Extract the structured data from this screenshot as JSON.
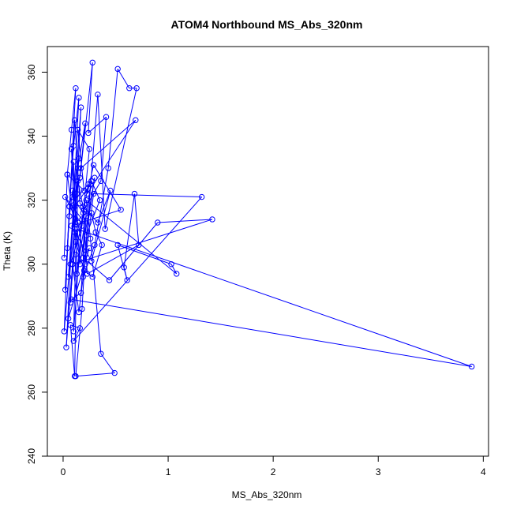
{
  "chart_data": {
    "type": "line",
    "title": "ATOM4 Northbound MS_Abs_320nm",
    "xlabel": "MS_Abs_320nm",
    "ylabel": "Theta (K)",
    "xlim": [
      -0.15,
      4.05
    ],
    "ylim": [
      240,
      368
    ],
    "xticks": [
      0,
      1,
      2,
      3,
      4
    ],
    "yticks": [
      240,
      260,
      280,
      300,
      320,
      340,
      360
    ],
    "grid": false,
    "series_color": "#0000ff",
    "marker": "open-circle",
    "series": [
      {
        "x": [
          0.01,
          0.04,
          0.08,
          0.12,
          0.02,
          0.06,
          0.1,
          0.15,
          0.03,
          0.09,
          0.13,
          0.07,
          0.11,
          0.17,
          0.05,
          0.14,
          0.21,
          0.16,
          0.28,
          0.24,
          0.41,
          0.36,
          0.2,
          0.19,
          0.3,
          0.43,
          0.52,
          0.63,
          0.7,
          0.4,
          0.33,
          0.21,
          0.18,
          0.12,
          0.49,
          0.36,
          0.26,
          0.22,
          1.08,
          1.03,
          0.52,
          0.61,
          0.58,
          0.68,
          0.72,
          0.23,
          0.19,
          0.14,
          0.11,
          0.07,
          0.16,
          0.1,
          1.32,
          0.29,
          0.15,
          0.09,
          1.42,
          0.9,
          0.44,
          0.19,
          0.25,
          0.05,
          0.13,
          3.89,
          0.08,
          0.17,
          0.22,
          0.27,
          0.31,
          0.37,
          0.28,
          0.2,
          0.12,
          0.09,
          0.06,
          0.04,
          0.11,
          0.16,
          0.33,
          0.45,
          0.27,
          0.08,
          0.55,
          0.29,
          0.23,
          0.69,
          0.17,
          0.11,
          0.26,
          0.21,
          0.14,
          0.02,
          0.18,
          0.1,
          0.12,
          0.24,
          0.06,
          0.01,
          0.15,
          0.09,
          0.19,
          0.13,
          0.27,
          0.35,
          0.22,
          0.3,
          0.16,
          0.08,
          0.11,
          0.04,
          0.2,
          0.14,
          0.25,
          0.18,
          0.07,
          0.12,
          0.1
        ],
        "y": [
          302,
          328,
          342,
          355,
          292,
          318,
          337,
          352,
          274,
          300,
          322,
          288,
          310,
          349,
          296,
          330,
          344,
          327,
          363,
          341,
          346,
          326,
          317,
          296,
          306,
          330,
          361,
          355,
          355,
          311,
          353,
          303,
          286,
          265,
          266,
          272,
          308,
          320,
          297,
          300,
          306,
          295,
          299,
          322,
          306,
          297,
          318,
          326,
          265,
          281,
          280,
          276,
          321,
          322,
          285,
          300,
          314,
          313,
          295,
          302,
          305,
          283,
          311,
          268,
          289,
          291,
          315,
          316,
          310,
          306,
          296,
          298,
          307,
          323,
          315,
          305,
          345,
          319,
          313,
          323,
          301,
          312,
          317,
          331,
          322,
          345,
          330,
          318,
          325,
          300,
          313,
          321,
          314,
          279,
          303,
          325,
          318,
          279,
          333,
          321,
          316,
          297,
          326,
          320,
          309,
          327,
          300,
          336,
          311,
          328,
          323,
          342,
          336,
          312,
          300,
          314,
          332
        ]
      }
    ]
  }
}
